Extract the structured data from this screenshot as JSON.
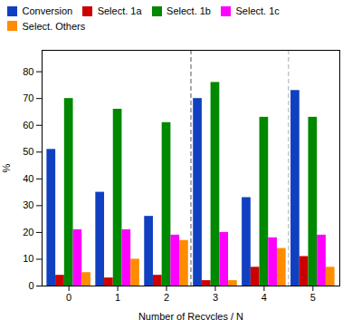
{
  "chart_data": {
    "type": "bar",
    "x": [
      0,
      1,
      2,
      3,
      4,
      5
    ],
    "series": [
      {
        "name": "Conversion",
        "color": "#1040C0",
        "values": [
          51,
          35,
          26,
          70,
          33,
          73
        ]
      },
      {
        "name": "Select. 1a",
        "color": "#CC0000",
        "values": [
          4,
          3,
          4,
          2,
          7,
          11
        ]
      },
      {
        "name": "Select. 1b",
        "color": "#008800",
        "values": [
          70,
          66,
          61,
          76,
          63,
          63
        ]
      },
      {
        "name": "Select. 1c",
        "color": "#FF00FF",
        "values": [
          21,
          21,
          19,
          20,
          18,
          19
        ]
      },
      {
        "name": "Select. Others",
        "color": "#FF8C00",
        "values": [
          5,
          10,
          17,
          2,
          14,
          7
        ]
      }
    ],
    "xlabel": "Number of Recycles / N",
    "ylabel": "%",
    "xlim": [
      -0.55,
      5.55
    ],
    "xticks": [
      0,
      1,
      2,
      3,
      4,
      5
    ],
    "ylim": [
      0,
      88
    ],
    "yticks": [
      0,
      10,
      20,
      30,
      40,
      50,
      60,
      70,
      80
    ],
    "grid": false,
    "legend": "top",
    "vlines": [
      {
        "x": 2.5,
        "color": "#555555",
        "line_style": "dashed"
      },
      {
        "x": 4.5,
        "color": "#AAAAAA",
        "line_style": "dashed"
      }
    ]
  }
}
